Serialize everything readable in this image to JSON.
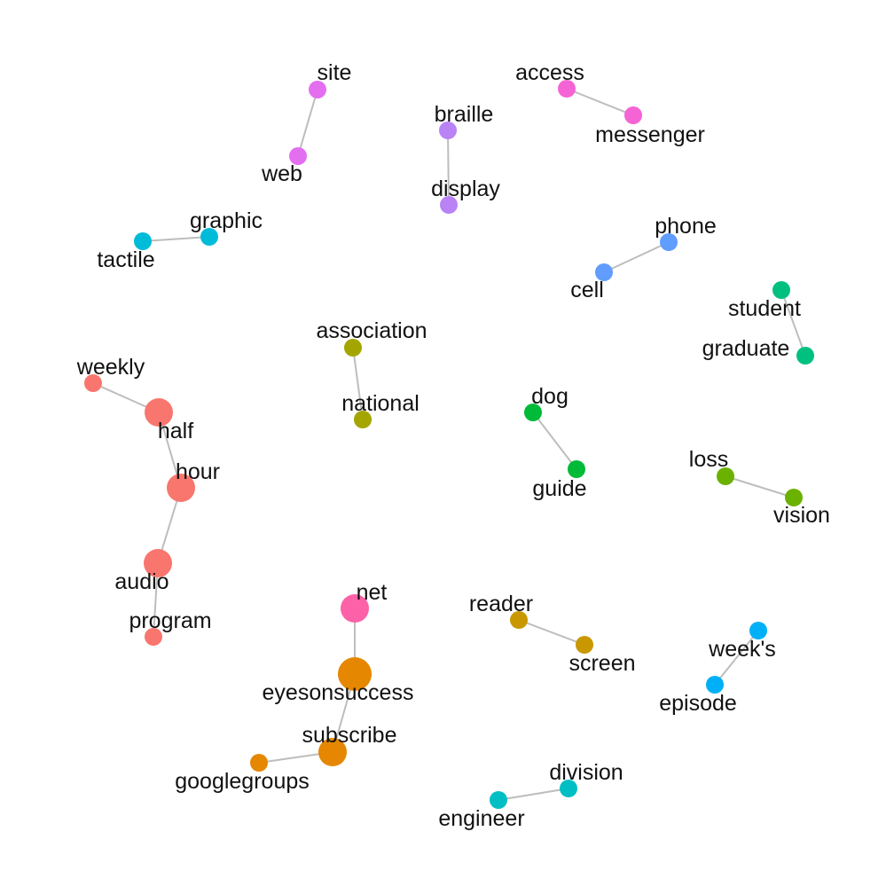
{
  "graph": {
    "nodes": [
      {
        "id": "site",
        "label": "site",
        "color": "#e36ef0"
      },
      {
        "id": "web",
        "label": "web",
        "color": "#e36ef0"
      },
      {
        "id": "access",
        "label": "access",
        "color": "#f564d4"
      },
      {
        "id": "messenger",
        "label": "messenger",
        "color": "#f564d4"
      },
      {
        "id": "braille",
        "label": "braille",
        "color": "#b983f6"
      },
      {
        "id": "display",
        "label": "display",
        "color": "#b983f6"
      },
      {
        "id": "graphic",
        "label": "graphic",
        "color": "#00bcd8"
      },
      {
        "id": "tactile",
        "label": "tactile",
        "color": "#00bcd8"
      },
      {
        "id": "phone",
        "label": "phone",
        "color": "#619cff"
      },
      {
        "id": "cell",
        "label": "cell",
        "color": "#619cff"
      },
      {
        "id": "student",
        "label": "student",
        "color": "#00c080"
      },
      {
        "id": "graduate",
        "label": "graduate",
        "color": "#00c080"
      },
      {
        "id": "association",
        "label": "association",
        "color": "#a3a500"
      },
      {
        "id": "national",
        "label": "national",
        "color": "#a3a500"
      },
      {
        "id": "weekly",
        "label": "weekly",
        "color": "#f8766d"
      },
      {
        "id": "half",
        "label": "half",
        "color": "#f8766d"
      },
      {
        "id": "hour",
        "label": "hour",
        "color": "#f8766d"
      },
      {
        "id": "audio",
        "label": "audio",
        "color": "#f8766d"
      },
      {
        "id": "program",
        "label": "program",
        "color": "#f8766d"
      },
      {
        "id": "dog",
        "label": "dog",
        "color": "#00ba38"
      },
      {
        "id": "guide",
        "label": "guide",
        "color": "#00ba38"
      },
      {
        "id": "loss",
        "label": "loss",
        "color": "#6bb100"
      },
      {
        "id": "vision",
        "label": "vision",
        "color": "#6bb100"
      },
      {
        "id": "net",
        "label": "net",
        "color": "#fd61a7"
      },
      {
        "id": "eyesonsuccess",
        "label": "eyesonsuccess",
        "color": "#e58700"
      },
      {
        "id": "subscribe",
        "label": "subscribe",
        "color": "#e58700"
      },
      {
        "id": "googlegroups",
        "label": "googlegroups",
        "color": "#e58700"
      },
      {
        "id": "reader",
        "label": "reader",
        "color": "#c99800"
      },
      {
        "id": "screen",
        "label": "screen",
        "color": "#c99800"
      },
      {
        "id": "weeks",
        "label": "week's",
        "color": "#00b0f6"
      },
      {
        "id": "episode",
        "label": "episode",
        "color": "#00b0f6"
      },
      {
        "id": "division",
        "label": "division",
        "color": "#00bfc4"
      },
      {
        "id": "engineer",
        "label": "engineer",
        "color": "#00bfc4"
      }
    ],
    "edges": [
      [
        "site",
        "web"
      ],
      [
        "access",
        "messenger"
      ],
      [
        "braille",
        "display"
      ],
      [
        "graphic",
        "tactile"
      ],
      [
        "phone",
        "cell"
      ],
      [
        "student",
        "graduate"
      ],
      [
        "association",
        "national"
      ],
      [
        "weekly",
        "half"
      ],
      [
        "half",
        "hour"
      ],
      [
        "hour",
        "audio"
      ],
      [
        "audio",
        "program"
      ],
      [
        "dog",
        "guide"
      ],
      [
        "loss",
        "vision"
      ],
      [
        "net",
        "eyesonsuccess"
      ],
      [
        "eyesonsuccess",
        "subscribe"
      ],
      [
        "subscribe",
        "googlegroups"
      ],
      [
        "reader",
        "screen"
      ],
      [
        "weeks",
        "episode"
      ],
      [
        "division",
        "engineer"
      ]
    ]
  }
}
